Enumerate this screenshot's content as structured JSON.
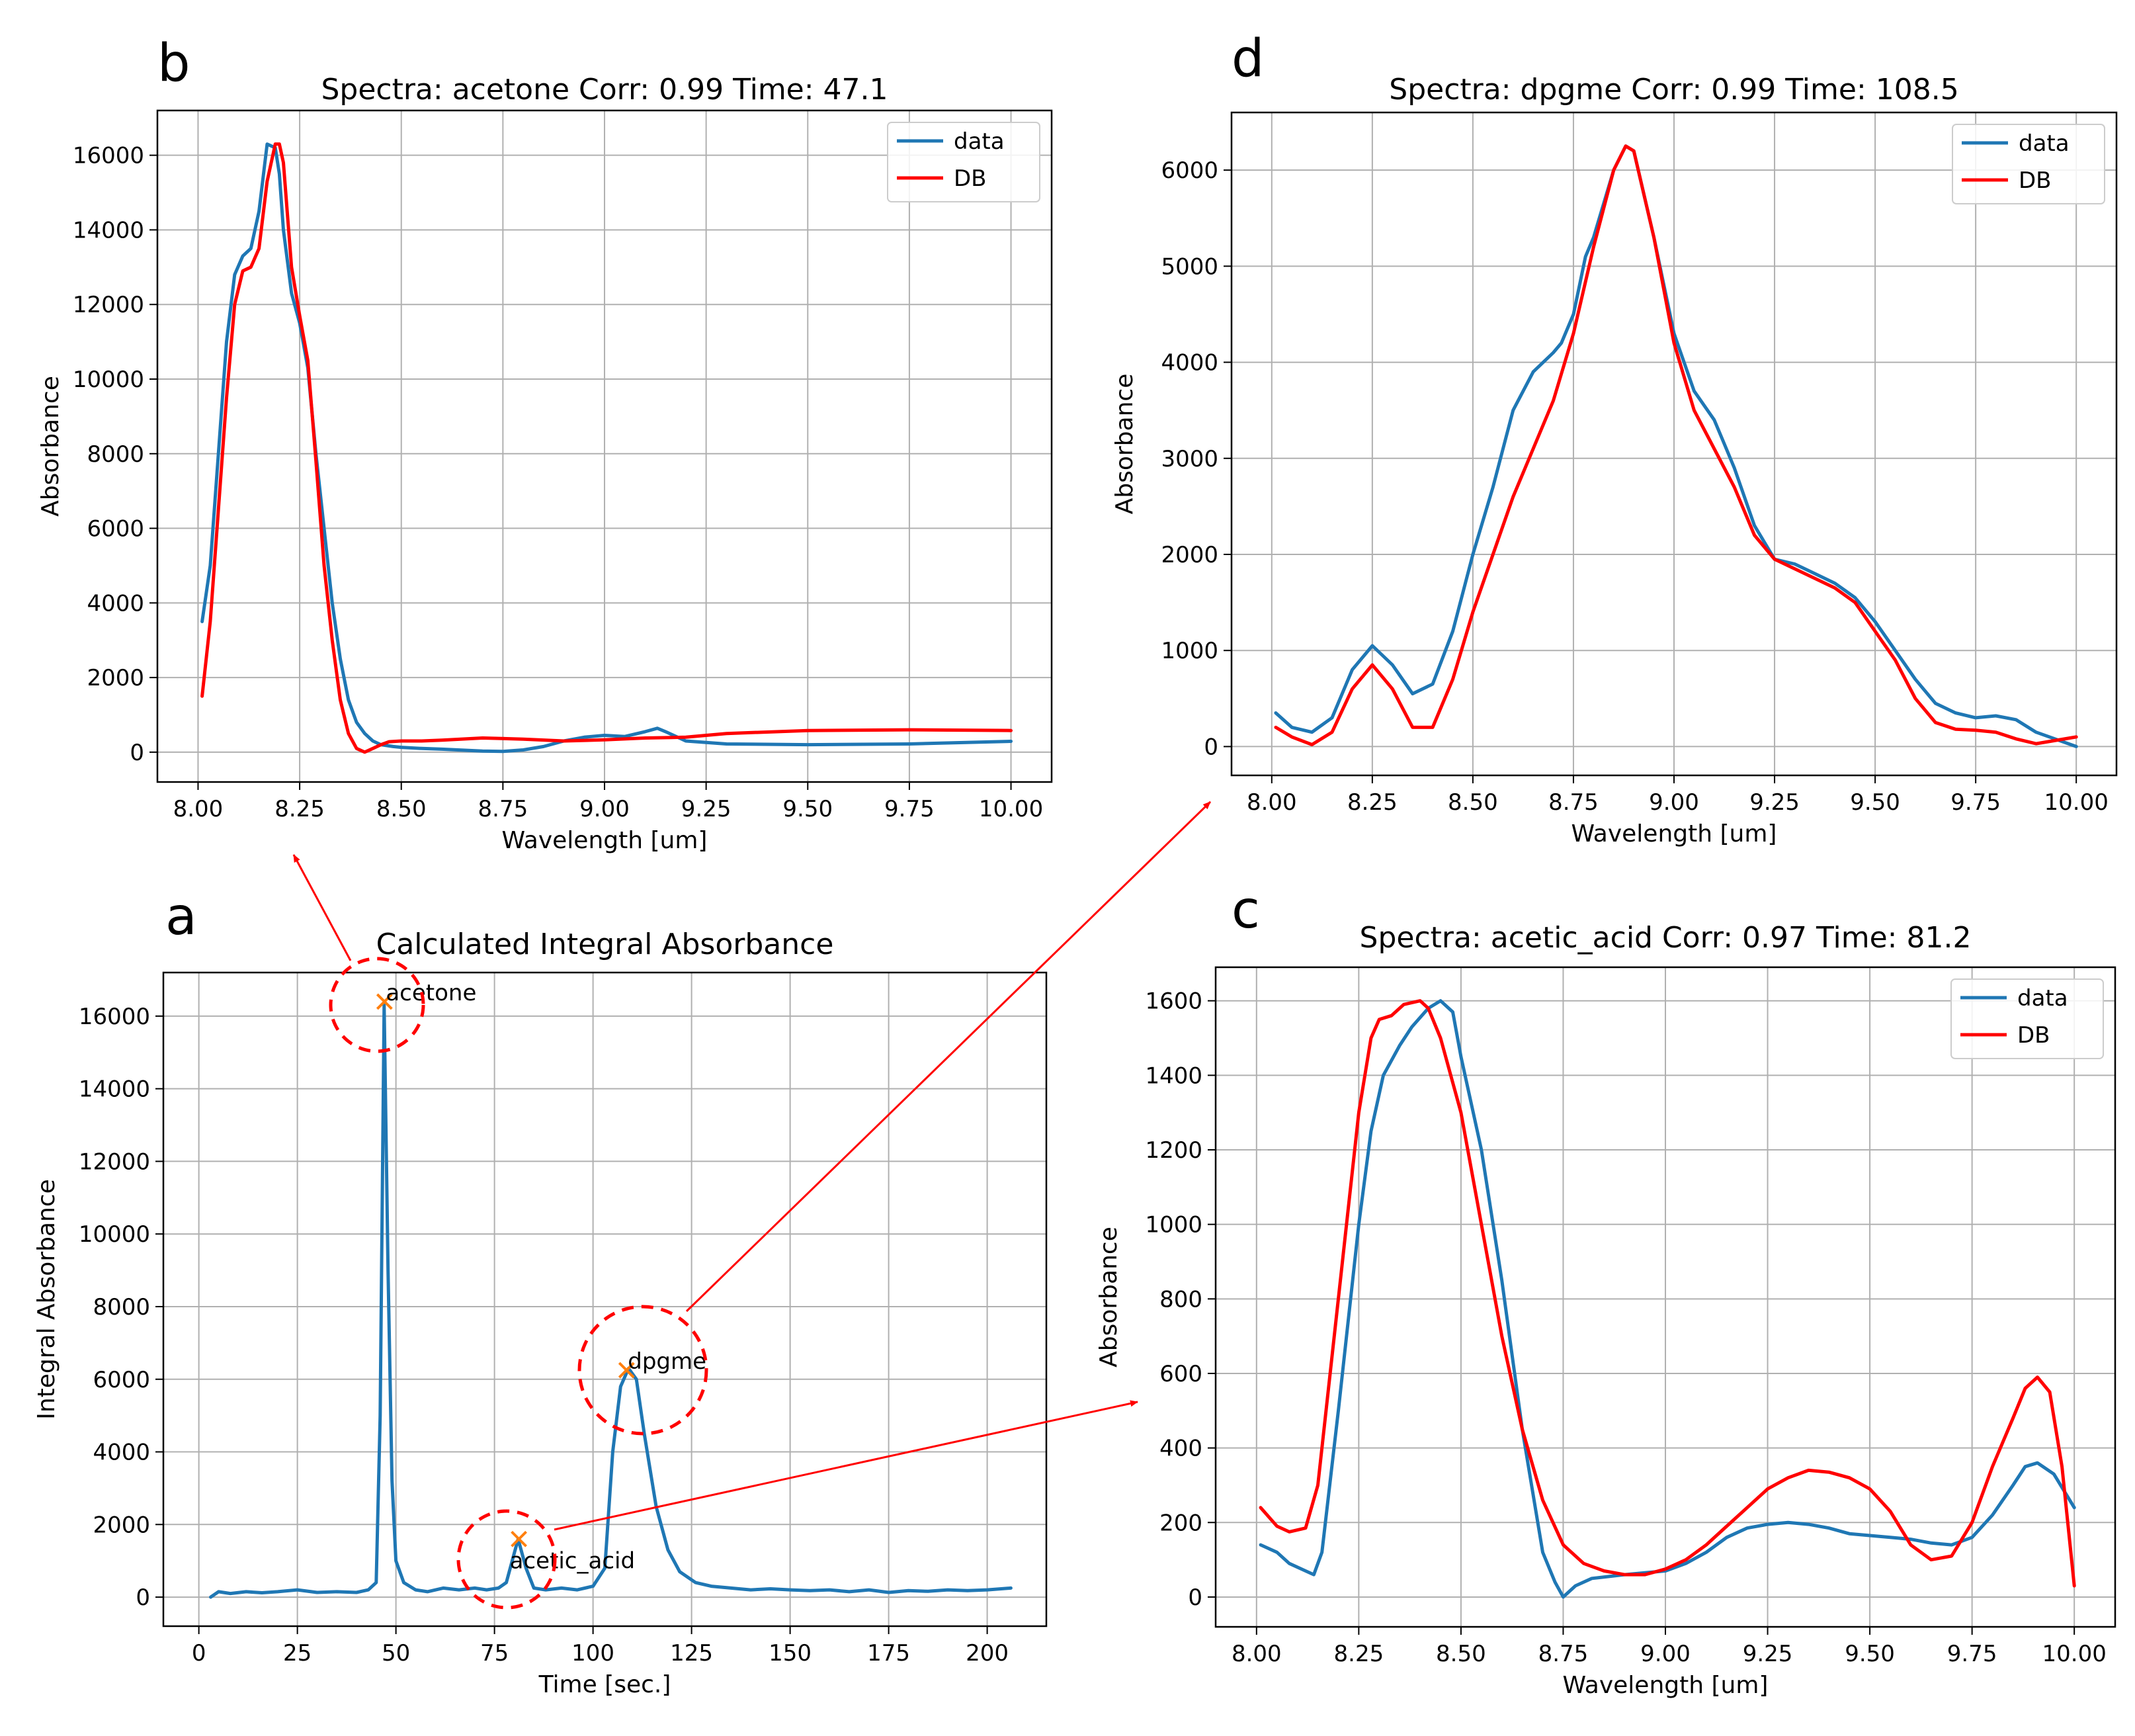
{
  "colors": {
    "data": "#1f77b4",
    "db": "#ff0000",
    "marker": "#ff7f0e",
    "annotation": "#ff0000",
    "grid": "#b0b0b0"
  },
  "chart_data": [
    {
      "id": "a",
      "panel_letter": "a",
      "type": "line",
      "title": "Calculated Integral Absorbance",
      "xlabel": "Time [sec.]",
      "ylabel": "Integral Absorbance",
      "xlim": [
        -9,
        215
      ],
      "ylim": [
        -800,
        17200
      ],
      "xticks": [
        0,
        25,
        50,
        75,
        100,
        125,
        150,
        175,
        200
      ],
      "xtick_labels": [
        "0",
        "25",
        "50",
        "75",
        "100",
        "125",
        "150",
        "175",
        "200"
      ],
      "yticks": [
        0,
        2000,
        4000,
        6000,
        8000,
        10000,
        12000,
        14000,
        16000
      ],
      "ytick_labels": [
        "0",
        "2000",
        "4000",
        "6000",
        "8000",
        "10000",
        "12000",
        "14000",
        "16000"
      ],
      "grid": true,
      "series": [
        {
          "key": "data",
          "x": [
            3,
            5,
            8,
            12,
            16,
            20,
            25,
            30,
            35,
            40,
            43,
            45,
            46,
            47,
            48,
            49,
            50,
            52,
            55,
            58,
            62,
            66,
            70,
            73,
            76,
            78,
            80,
            81,
            83,
            85,
            88,
            92,
            96,
            100,
            103,
            105,
            107,
            109,
            111,
            113,
            116,
            119,
            122,
            126,
            130,
            135,
            140,
            145,
            150,
            155,
            160,
            165,
            170,
            175,
            180,
            185,
            190,
            195,
            200,
            206
          ],
          "y": [
            0,
            150,
            100,
            150,
            120,
            150,
            200,
            130,
            150,
            130,
            200,
            400,
            5000,
            16300,
            9000,
            3200,
            1000,
            400,
            200,
            150,
            250,
            200,
            250,
            200,
            250,
            400,
            1200,
            1600,
            800,
            250,
            200,
            250,
            200,
            300,
            800,
            4000,
            5800,
            6300,
            6000,
            4500,
            2500,
            1300,
            700,
            400,
            300,
            250,
            200,
            230,
            200,
            180,
            200,
            150,
            200,
            130,
            180,
            160,
            200,
            180,
            200,
            250
          ]
        }
      ],
      "markers": [
        {
          "label": "acetone",
          "x": 47.1,
          "y": 16400
        },
        {
          "label": "acetic_acid",
          "x": 81.2,
          "y": 1600
        },
        {
          "label": "dpgme",
          "x": 108.5,
          "y": 6250
        }
      ]
    },
    {
      "id": "b",
      "panel_letter": "b",
      "type": "line",
      "title": "Spectra: acetone Corr: 0.99 Time: 47.1",
      "xlabel": "Wavelength [um]",
      "ylabel": "Absorbance",
      "xlim": [
        7.9,
        10.1
      ],
      "ylim": [
        -800,
        17200
      ],
      "xticks": [
        8.0,
        8.25,
        8.5,
        8.75,
        9.0,
        9.25,
        9.5,
        9.75,
        10.0
      ],
      "xtick_labels": [
        "8.00",
        "8.25",
        "8.50",
        "8.75",
        "9.00",
        "9.25",
        "9.50",
        "9.75",
        "10.00"
      ],
      "yticks": [
        0,
        2000,
        4000,
        6000,
        8000,
        10000,
        12000,
        14000,
        16000
      ],
      "ytick_labels": [
        "0",
        "2000",
        "4000",
        "6000",
        "8000",
        "10000",
        "12000",
        "14000",
        "16000"
      ],
      "grid": true,
      "legend": [
        "data",
        "DB"
      ],
      "legend_position": "top-right",
      "series": [
        {
          "key": "data",
          "x": [
            8.01,
            8.03,
            8.05,
            8.07,
            8.09,
            8.11,
            8.13,
            8.15,
            8.17,
            8.19,
            8.2,
            8.21,
            8.23,
            8.25,
            8.27,
            8.29,
            8.31,
            8.33,
            8.35,
            8.37,
            8.39,
            8.41,
            8.43,
            8.45,
            8.48,
            8.5,
            8.55,
            8.6,
            8.7,
            8.75,
            8.8,
            8.85,
            8.9,
            8.95,
            9.0,
            9.05,
            9.1,
            9.13,
            9.15,
            9.2,
            9.3,
            9.5,
            9.75,
            10.0
          ],
          "y": [
            3500,
            5000,
            8000,
            11000,
            12800,
            13300,
            13500,
            14500,
            16300,
            16200,
            15500,
            14000,
            12300,
            11500,
            10300,
            8000,
            6000,
            4000,
            2500,
            1400,
            800,
            500,
            300,
            200,
            150,
            130,
            100,
            80,
            30,
            20,
            60,
            150,
            300,
            400,
            450,
            420,
            550,
            640,
            550,
            300,
            220,
            200,
            220,
            290
          ]
        },
        {
          "key": "db",
          "x": [
            8.01,
            8.03,
            8.05,
            8.07,
            8.09,
            8.11,
            8.13,
            8.15,
            8.17,
            8.19,
            8.2,
            8.21,
            8.23,
            8.25,
            8.27,
            8.29,
            8.31,
            8.33,
            8.35,
            8.37,
            8.39,
            8.41,
            8.43,
            8.45,
            8.47,
            8.5,
            8.55,
            8.6,
            8.7,
            8.8,
            8.9,
            9.0,
            9.1,
            9.2,
            9.3,
            9.5,
            9.75,
            10.0
          ],
          "y": [
            1500,
            3500,
            6500,
            9500,
            12000,
            12900,
            13000,
            13500,
            15300,
            16300,
            16300,
            15800,
            13000,
            11700,
            10500,
            7800,
            5000,
            3000,
            1400,
            500,
            100,
            0,
            100,
            200,
            280,
            300,
            300,
            320,
            380,
            350,
            300,
            330,
            380,
            400,
            500,
            580,
            600,
            580
          ]
        }
      ]
    },
    {
      "id": "d",
      "panel_letter": "d",
      "type": "line",
      "title": "Spectra: dpgme Corr: 0.99 Time: 108.5",
      "xlabel": "Wavelength [um]",
      "ylabel": "Absorbance",
      "xlim": [
        7.9,
        10.1
      ],
      "ylim": [
        -300,
        6600
      ],
      "xticks": [
        8.0,
        8.25,
        8.5,
        8.75,
        9.0,
        9.25,
        9.5,
        9.75,
        10.0
      ],
      "xtick_labels": [
        "8.00",
        "8.25",
        "8.50",
        "8.75",
        "9.00",
        "9.25",
        "9.50",
        "9.75",
        "10.00"
      ],
      "yticks": [
        0,
        1000,
        2000,
        3000,
        4000,
        5000,
        6000
      ],
      "ytick_labels": [
        "0",
        "1000",
        "2000",
        "3000",
        "4000",
        "5000",
        "6000"
      ],
      "grid": true,
      "legend": [
        "data",
        "DB"
      ],
      "legend_position": "top-right",
      "series": [
        {
          "key": "data",
          "x": [
            8.01,
            8.05,
            8.1,
            8.15,
            8.2,
            8.25,
            8.3,
            8.35,
            8.4,
            8.45,
            8.5,
            8.55,
            8.6,
            8.65,
            8.7,
            8.72,
            8.75,
            8.78,
            8.8,
            8.85,
            8.88,
            8.9,
            8.95,
            9.0,
            9.05,
            9.1,
            9.12,
            9.15,
            9.2,
            9.25,
            9.3,
            9.35,
            9.4,
            9.45,
            9.5,
            9.55,
            9.6,
            9.65,
            9.7,
            9.75,
            9.8,
            9.85,
            9.9,
            10.0
          ],
          "y": [
            350,
            200,
            150,
            300,
            800,
            1050,
            850,
            550,
            650,
            1200,
            2000,
            2700,
            3500,
            3900,
            4100,
            4200,
            4500,
            5100,
            5300,
            6000,
            6250,
            6200,
            5300,
            4300,
            3700,
            3400,
            3200,
            2900,
            2300,
            1950,
            1900,
            1800,
            1700,
            1550,
            1300,
            1000,
            700,
            450,
            350,
            300,
            320,
            280,
            150,
            0
          ]
        },
        {
          "key": "db",
          "x": [
            8.01,
            8.05,
            8.1,
            8.15,
            8.2,
            8.25,
            8.3,
            8.35,
            8.4,
            8.45,
            8.5,
            8.55,
            8.6,
            8.65,
            8.7,
            8.75,
            8.8,
            8.85,
            8.88,
            8.9,
            8.95,
            9.0,
            9.05,
            9.1,
            9.15,
            9.2,
            9.25,
            9.3,
            9.35,
            9.4,
            9.45,
            9.5,
            9.55,
            9.6,
            9.65,
            9.7,
            9.75,
            9.8,
            9.85,
            9.9,
            10.0
          ],
          "y": [
            200,
            100,
            20,
            150,
            600,
            850,
            600,
            200,
            200,
            700,
            1400,
            2000,
            2600,
            3100,
            3600,
            4300,
            5200,
            6000,
            6250,
            6200,
            5300,
            4200,
            3500,
            3100,
            2700,
            2200,
            1950,
            1850,
            1750,
            1650,
            1500,
            1200,
            900,
            500,
            250,
            180,
            170,
            150,
            80,
            30,
            100
          ]
        }
      ]
    },
    {
      "id": "c",
      "panel_letter": "c",
      "type": "line",
      "title": "Spectra: acetic_acid Corr: 0.97 Time: 81.2",
      "xlabel": "Wavelength [um]",
      "ylabel": "Absorbance",
      "xlim": [
        7.9,
        10.1
      ],
      "ylim": [
        -80,
        1690
      ],
      "xticks": [
        8.0,
        8.25,
        8.5,
        8.75,
        9.0,
        9.25,
        9.5,
        9.75,
        10.0
      ],
      "xtick_labels": [
        "8.00",
        "8.25",
        "8.50",
        "8.75",
        "9.00",
        "9.25",
        "9.50",
        "9.75",
        "10.00"
      ],
      "yticks": [
        0,
        200,
        400,
        600,
        800,
        1000,
        1200,
        1400,
        1600
      ],
      "ytick_labels": [
        "0",
        "200",
        "400",
        "600",
        "800",
        "1000",
        "1200",
        "1400",
        "1600"
      ],
      "grid": true,
      "legend": [
        "data",
        "DB"
      ],
      "legend_position": "top-right",
      "series": [
        {
          "key": "data",
          "x": [
            8.01,
            8.05,
            8.08,
            8.12,
            8.14,
            8.16,
            8.2,
            8.25,
            8.28,
            8.31,
            8.35,
            8.38,
            8.42,
            8.45,
            8.48,
            8.5,
            8.55,
            8.6,
            8.65,
            8.7,
            8.73,
            8.75,
            8.78,
            8.82,
            8.86,
            8.9,
            8.95,
            9.0,
            9.05,
            9.1,
            9.15,
            9.2,
            9.25,
            9.3,
            9.35,
            9.4,
            9.45,
            9.5,
            9.55,
            9.6,
            9.65,
            9.7,
            9.75,
            9.8,
            9.85,
            9.88,
            9.91,
            9.95,
            10.0
          ],
          "y": [
            140,
            120,
            90,
            70,
            60,
            120,
            500,
            1000,
            1250,
            1400,
            1480,
            1530,
            1580,
            1600,
            1570,
            1450,
            1200,
            850,
            450,
            120,
            40,
            0,
            30,
            50,
            55,
            60,
            65,
            70,
            90,
            120,
            160,
            185,
            195,
            200,
            195,
            185,
            170,
            165,
            160,
            155,
            145,
            140,
            160,
            220,
            300,
            350,
            360,
            330,
            240
          ]
        },
        {
          "key": "db",
          "x": [
            8.01,
            8.05,
            8.08,
            8.12,
            8.15,
            8.2,
            8.25,
            8.28,
            8.3,
            8.33,
            8.36,
            8.4,
            8.42,
            8.45,
            8.5,
            8.55,
            8.6,
            8.65,
            8.7,
            8.75,
            8.8,
            8.85,
            8.9,
            8.95,
            9.0,
            9.05,
            9.1,
            9.15,
            9.2,
            9.25,
            9.3,
            9.35,
            9.4,
            9.45,
            9.5,
            9.55,
            9.6,
            9.65,
            9.7,
            9.75,
            9.8,
            9.85,
            9.88,
            9.91,
            9.94,
            9.97,
            10.0
          ],
          "y": [
            240,
            190,
            175,
            185,
            300,
            800,
            1300,
            1500,
            1550,
            1560,
            1590,
            1600,
            1580,
            1500,
            1300,
            1000,
            700,
            450,
            260,
            140,
            90,
            70,
            60,
            60,
            75,
            100,
            140,
            190,
            240,
            290,
            320,
            340,
            335,
            320,
            290,
            230,
            140,
            100,
            110,
            200,
            350,
            480,
            560,
            590,
            550,
            350,
            30
          ]
        }
      ]
    }
  ]
}
